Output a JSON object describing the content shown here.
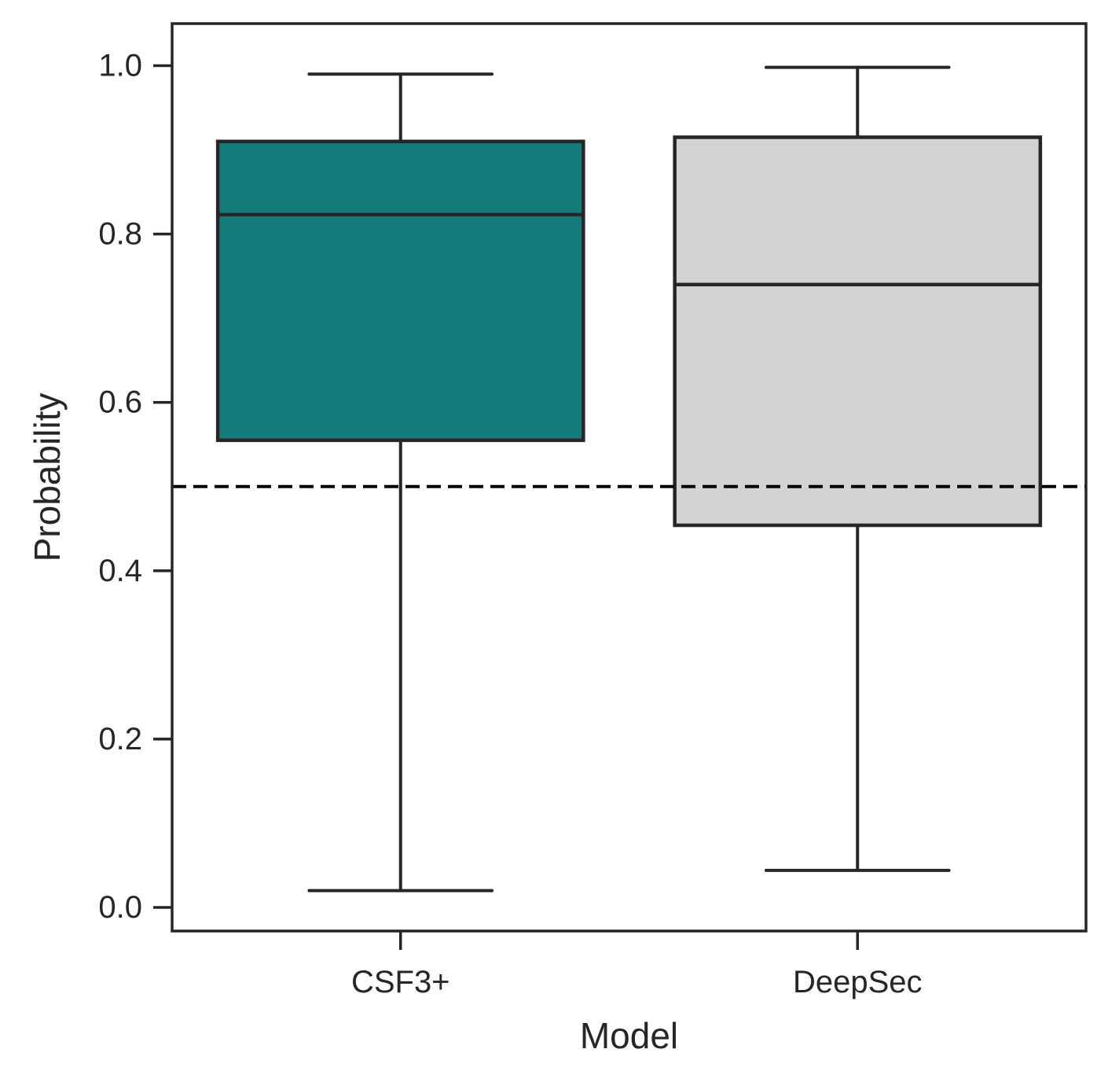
{
  "chart_data": {
    "type": "boxplot",
    "xlabel": "Model",
    "ylabel": "Probability",
    "ylim": [
      -0.028,
      1.05
    ],
    "yticks": [
      0.0,
      0.2,
      0.4,
      0.6,
      0.8,
      1.0
    ],
    "ytick_labels": [
      "0.0",
      "0.2",
      "0.4",
      "0.6",
      "0.8",
      "1.0"
    ],
    "categories": [
      "CSF3+",
      "DeepSec"
    ],
    "boxes": [
      {
        "category": "CSF3+",
        "whisker_low": 0.02,
        "q1": 0.555,
        "median": 0.823,
        "q3": 0.91,
        "whisker_high": 0.99,
        "color": "#137c7b"
      },
      {
        "category": "DeepSec",
        "whisker_low": 0.044,
        "q1": 0.454,
        "median": 0.74,
        "q3": 0.915,
        "whisker_high": 0.998,
        "color": "#d3d3d3"
      }
    ],
    "reference_line": {
      "y": 0.5,
      "style": "dashed",
      "color": "#000000"
    },
    "grid": false,
    "legend": "none"
  }
}
